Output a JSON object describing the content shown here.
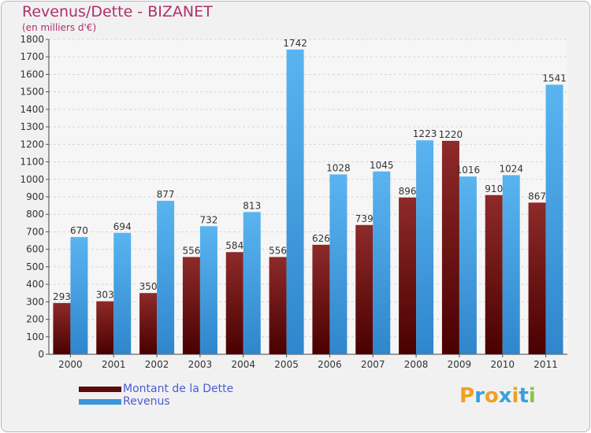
{
  "chart_data": {
    "type": "bar",
    "title": "Revenus/Dette - BIZANET",
    "subtitle": "(en milliers d'€)",
    "categories": [
      "2000",
      "2001",
      "2002",
      "2003",
      "2004",
      "2005",
      "2006",
      "2007",
      "2008",
      "2009",
      "2010",
      "2011"
    ],
    "series": [
      {
        "name": "Montant de la Dette",
        "color": "#7a1a1a",
        "values": [
          293,
          303,
          350,
          556,
          584,
          556,
          626,
          739,
          896,
          1220,
          910,
          867
        ]
      },
      {
        "name": "Revenus",
        "color": "#4aa3e6",
        "values": [
          670,
          694,
          877,
          732,
          813,
          1742,
          1028,
          1045,
          1223,
          1016,
          1024,
          1541
        ]
      }
    ],
    "ylim": [
      0,
      1800
    ],
    "yticks": [
      0,
      100,
      200,
      300,
      400,
      500,
      600,
      700,
      800,
      900,
      1000,
      1100,
      1200,
      1300,
      1400,
      1500,
      1600,
      1700,
      1800
    ],
    "grid": true,
    "legend_position": "bottom-left"
  },
  "logo": {
    "text": "Proxiti",
    "letters": [
      {
        "ch": "P",
        "color": "#f0a020"
      },
      {
        "ch": "r",
        "color": "#3aa0d8"
      },
      {
        "ch": "o",
        "color": "#f0a020"
      },
      {
        "ch": "x",
        "color": "#3aa0d8"
      },
      {
        "ch": "i",
        "color": "#f0a020"
      },
      {
        "ch": "t",
        "color": "#3aa0d8"
      },
      {
        "ch": "i",
        "color": "#8bc34a"
      }
    ]
  }
}
